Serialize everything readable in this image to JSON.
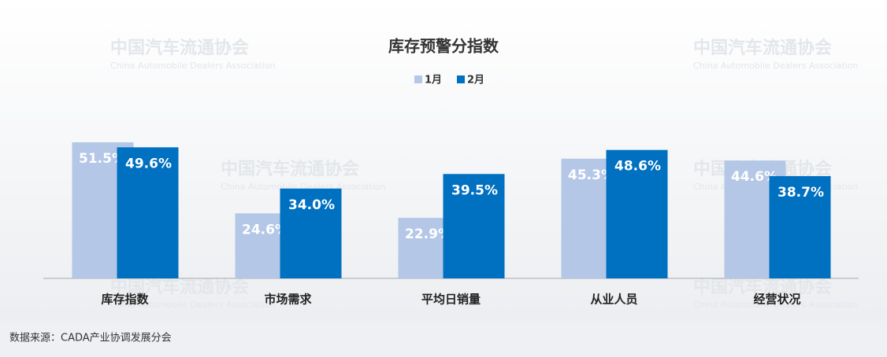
{
  "chart_data": {
    "type": "bar",
    "title": "库存预警分指数",
    "categories": [
      "库存指数",
      "市场需求",
      "平均日销量",
      "从业人员",
      "经营状况"
    ],
    "series": [
      {
        "name": "1月",
        "color": "#b4c7e7",
        "values": [
          51.5,
          24.6,
          22.9,
          45.3,
          44.6
        ],
        "value_labels": [
          "51.5%",
          "24.6%",
          "22.9%",
          "45.3%",
          "44.6%"
        ]
      },
      {
        "name": "2月",
        "color": "#0070c0",
        "values": [
          49.6,
          34.0,
          39.5,
          48.6,
          38.7
        ],
        "value_labels": [
          "49.6%",
          "34.0%",
          "39.5%",
          "48.6%",
          "38.7%"
        ]
      }
    ],
    "source": "数据来源：CADA产业协调发展分会",
    "watermark": {
      "cn": "中国汽车流通协会",
      "en": "China Automobile Dealers Association"
    }
  }
}
